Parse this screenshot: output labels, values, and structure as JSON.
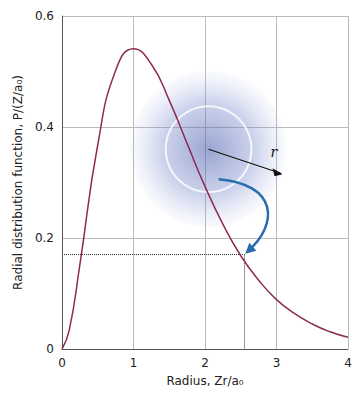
{
  "chart_data": {
    "type": "line",
    "x_label": "Radius, Zr/a₀",
    "y_label": "Radial distribution function, P/(Z/a₀)",
    "x": [
      0,
      0.1,
      0.25,
      0.5,
      0.75,
      1,
      1.25,
      1.5,
      1.75,
      2,
      2.25,
      2.5,
      2.75,
      3,
      3.25,
      3.5,
      3.75,
      4
    ],
    "values": [
      0,
      0.033,
      0.152,
      0.368,
      0.502,
      0.541,
      0.513,
      0.448,
      0.37,
      0.293,
      0.225,
      0.168,
      0.124,
      0.089,
      0.064,
      0.045,
      0.031,
      0.021
    ],
    "color": "#8e2a55",
    "xlim": [
      0,
      4
    ],
    "xticks": [
      0,
      1,
      2,
      3,
      4
    ],
    "ylim": [
      0,
      0.6
    ],
    "yticks": [
      0,
      0.2,
      0.4,
      0.6
    ],
    "grid": true,
    "annotation": "r",
    "reference_point": {
      "x": 2.55,
      "y": 0.17
    }
  }
}
